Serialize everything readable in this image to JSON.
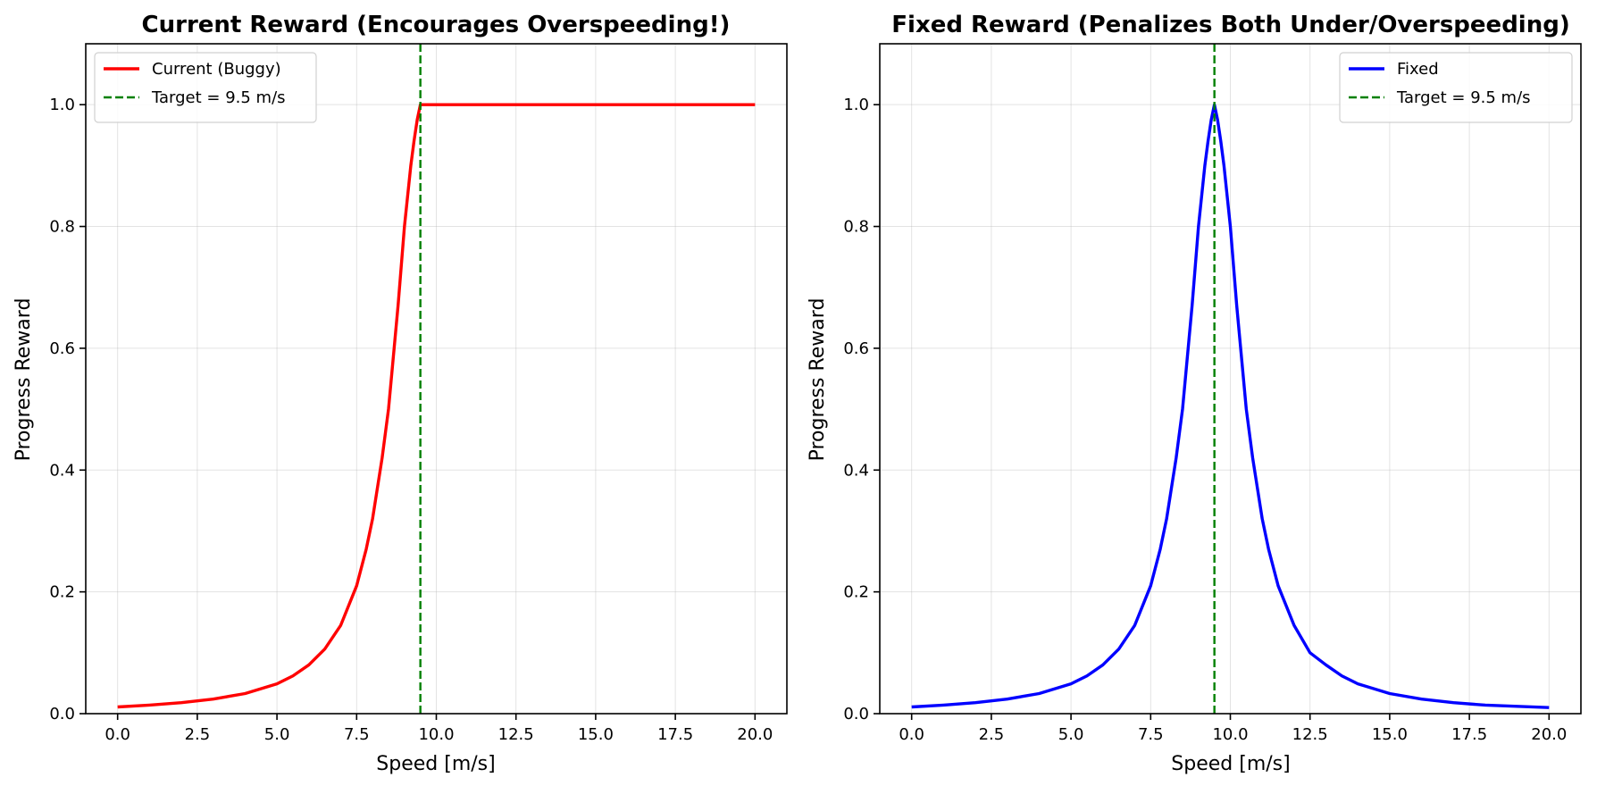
{
  "chart_data": [
    {
      "type": "line",
      "title": "Current Reward (Encourages Overspeeding!)",
      "xlabel": "Speed [m/s]",
      "ylabel": "Progress Reward",
      "xlim": [
        -1,
        21
      ],
      "ylim": [
        0,
        1.1
      ],
      "xticks": [
        0.0,
        2.5,
        5.0,
        7.5,
        10.0,
        12.5,
        15.0,
        17.5,
        20.0
      ],
      "xtick_labels": [
        "0.0",
        "2.5",
        "5.0",
        "7.5",
        "10.0",
        "12.5",
        "15.0",
        "17.5",
        "20.0"
      ],
      "yticks": [
        0.0,
        0.2,
        0.4,
        0.6,
        0.8,
        1.0
      ],
      "ytick_labels": [
        "0.0",
        "0.2",
        "0.4",
        "0.6",
        "0.8",
        "1.0"
      ],
      "grid": true,
      "legend_position": "top-left",
      "series": [
        {
          "name": "Current (Buggy)",
          "color": "#ff0000",
          "style": "solid",
          "x": [
            0,
            1,
            2,
            2.5,
            3,
            4,
            5,
            5.5,
            6,
            6.5,
            7,
            7.5,
            7.8,
            8,
            8.3,
            8.5,
            8.8,
            9,
            9.2,
            9.3,
            9.4,
            9.5,
            10,
            12,
            14,
            16,
            18,
            20
          ],
          "y": [
            0.011,
            0.014,
            0.018,
            0.021,
            0.024,
            0.033,
            0.049,
            0.062,
            0.08,
            0.106,
            0.145,
            0.21,
            0.27,
            0.32,
            0.42,
            0.5,
            0.67,
            0.8,
            0.9,
            0.94,
            0.975,
            1.0,
            1.0,
            1.0,
            1.0,
            1.0,
            1.0,
            1.0
          ]
        },
        {
          "name": "Target = 9.5 m/s",
          "color": "#008000",
          "style": "dashed",
          "vertical_x": 9.5
        }
      ]
    },
    {
      "type": "line",
      "title": "Fixed Reward (Penalizes Both Under/Overspeeding)",
      "xlabel": "Speed [m/s]",
      "ylabel": "Progress Reward",
      "xlim": [
        -1,
        21
      ],
      "ylim": [
        0,
        1.1
      ],
      "xticks": [
        0.0,
        2.5,
        5.0,
        7.5,
        10.0,
        12.5,
        15.0,
        17.5,
        20.0
      ],
      "xtick_labels": [
        "0.0",
        "2.5",
        "5.0",
        "7.5",
        "10.0",
        "12.5",
        "15.0",
        "17.5",
        "20.0"
      ],
      "yticks": [
        0.0,
        0.2,
        0.4,
        0.6,
        0.8,
        1.0
      ],
      "ytick_labels": [
        "0.0",
        "0.2",
        "0.4",
        "0.6",
        "0.8",
        "1.0"
      ],
      "grid": true,
      "legend_position": "top-right",
      "series": [
        {
          "name": "Fixed",
          "color": "#0000ff",
          "style": "solid",
          "x": [
            0,
            1,
            2,
            2.5,
            3,
            4,
            5,
            5.5,
            6,
            6.5,
            7,
            7.5,
            7.8,
            8,
            8.3,
            8.5,
            8.8,
            9,
            9.2,
            9.3,
            9.4,
            9.5,
            9.6,
            9.7,
            9.8,
            10,
            10.2,
            10.5,
            10.7,
            11,
            11.2,
            11.5,
            12,
            12.5,
            13,
            13.5,
            14,
            15,
            16,
            17,
            18,
            19,
            20
          ],
          "y": [
            0.011,
            0.014,
            0.018,
            0.021,
            0.024,
            0.033,
            0.049,
            0.062,
            0.08,
            0.106,
            0.145,
            0.21,
            0.27,
            0.32,
            0.42,
            0.5,
            0.67,
            0.8,
            0.9,
            0.94,
            0.975,
            1.0,
            0.975,
            0.94,
            0.9,
            0.8,
            0.67,
            0.5,
            0.42,
            0.32,
            0.27,
            0.21,
            0.145,
            0.1,
            0.08,
            0.062,
            0.049,
            0.033,
            0.024,
            0.018,
            0.014,
            0.012,
            0.01
          ]
        },
        {
          "name": "Target = 9.5 m/s",
          "color": "#008000",
          "style": "dashed",
          "vertical_x": 9.5
        }
      ]
    }
  ]
}
